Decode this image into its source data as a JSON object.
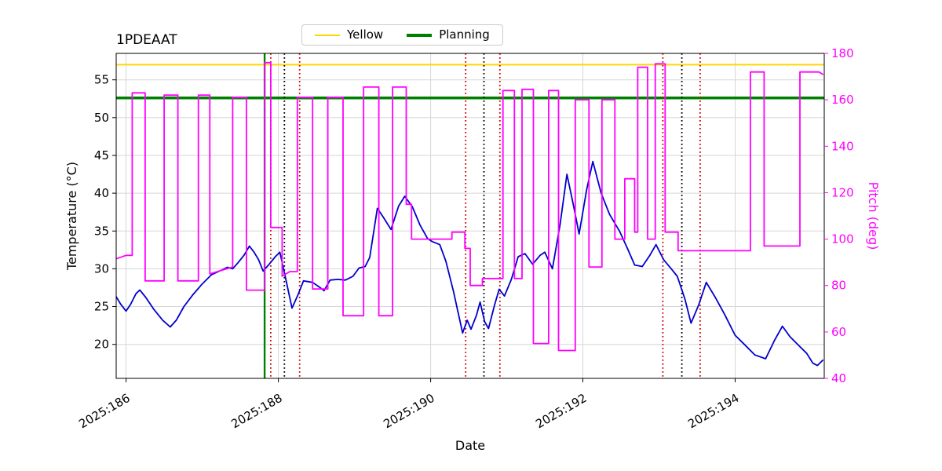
{
  "chart_data": {
    "type": "line",
    "title": "1PDEAAT",
    "xlabel": "Date",
    "ylabel_left": "Temperature (°C)",
    "ylabel_right": "Pitch (deg)",
    "grid": true,
    "legend_position": "top-center",
    "right_axis_color": "#ff00ff",
    "xlim": [
      185.87,
      195.17
    ],
    "ylim_left": [
      15.5,
      58.5
    ],
    "ylim_right": [
      40,
      180
    ],
    "x_ticks": [
      186,
      188,
      190,
      192,
      194
    ],
    "x_tick_labels": [
      "2025:186",
      "2025:188",
      "2025:190",
      "2025:192",
      "2025:194"
    ],
    "y_ticks_left": [
      20,
      25,
      30,
      35,
      40,
      45,
      50,
      55
    ],
    "y_ticks_right": [
      40,
      60,
      80,
      100,
      120,
      140,
      160,
      180
    ],
    "legend": [
      {
        "label": "Yellow",
        "color": "#ffd700",
        "width": 2
      },
      {
        "label": "Planning",
        "color": "#008000",
        "width": 4
      }
    ],
    "hlines": [
      {
        "name": "yellow-limit",
        "y": 57.0,
        "color": "#ffd700",
        "width": 2
      },
      {
        "name": "planning-limit",
        "y": 52.6,
        "color": "#008000",
        "width": 3.5
      }
    ],
    "vlines": [
      {
        "x": 187.82,
        "color": "#008000",
        "style": "solid",
        "width": 2.4
      },
      {
        "x": 187.9,
        "color": "#cc0000",
        "style": "dotted",
        "width": 1.8
      },
      {
        "x": 188.08,
        "color": "#000000",
        "style": "dotted",
        "width": 1.8
      },
      {
        "x": 188.28,
        "color": "#cc0000",
        "style": "dotted",
        "width": 1.8
      },
      {
        "x": 190.46,
        "color": "#cc0000",
        "style": "dotted",
        "width": 1.8
      },
      {
        "x": 190.7,
        "color": "#000000",
        "style": "dotted",
        "width": 1.8
      },
      {
        "x": 190.91,
        "color": "#cc0000",
        "style": "dotted",
        "width": 1.8
      },
      {
        "x": 193.05,
        "color": "#cc0000",
        "style": "dotted",
        "width": 1.8
      },
      {
        "x": 193.3,
        "color": "#000000",
        "style": "dotted",
        "width": 1.8
      },
      {
        "x": 193.54,
        "color": "#cc0000",
        "style": "dotted",
        "width": 1.8
      }
    ],
    "series": [
      {
        "name": "Temperature",
        "axis": "left",
        "color": "#0000cd",
        "width": 1.8,
        "points": [
          [
            185.87,
            26.3
          ],
          [
            185.93,
            25.3
          ],
          [
            186.0,
            24.4
          ],
          [
            186.06,
            25.3
          ],
          [
            186.13,
            26.7
          ],
          [
            186.18,
            27.2
          ],
          [
            186.26,
            26.2
          ],
          [
            186.36,
            24.7
          ],
          [
            186.48,
            23.2
          ],
          [
            186.58,
            22.3
          ],
          [
            186.66,
            23.2
          ],
          [
            186.76,
            25.0
          ],
          [
            186.88,
            26.6
          ],
          [
            187.0,
            28.0
          ],
          [
            187.12,
            29.2
          ],
          [
            187.25,
            29.8
          ],
          [
            187.33,
            30.2
          ],
          [
            187.4,
            30.0
          ],
          [
            187.47,
            30.8
          ],
          [
            187.55,
            31.8
          ],
          [
            187.62,
            33.0
          ],
          [
            187.68,
            32.2
          ],
          [
            187.74,
            31.2
          ],
          [
            187.8,
            29.7
          ],
          [
            187.88,
            30.6
          ],
          [
            187.96,
            31.6
          ],
          [
            188.02,
            32.2
          ],
          [
            188.09,
            29.0
          ],
          [
            188.18,
            24.8
          ],
          [
            188.26,
            26.6
          ],
          [
            188.33,
            28.4
          ],
          [
            188.45,
            28.2
          ],
          [
            188.55,
            27.5
          ],
          [
            188.6,
            27.1
          ],
          [
            188.68,
            28.5
          ],
          [
            188.78,
            28.6
          ],
          [
            188.88,
            28.5
          ],
          [
            188.98,
            29.0
          ],
          [
            189.06,
            30.1
          ],
          [
            189.14,
            30.3
          ],
          [
            189.2,
            31.5
          ],
          [
            189.3,
            38.0
          ],
          [
            189.38,
            36.8
          ],
          [
            189.48,
            35.2
          ],
          [
            189.58,
            38.3
          ],
          [
            189.66,
            39.6
          ],
          [
            189.76,
            38.2
          ],
          [
            189.86,
            35.8
          ],
          [
            189.96,
            34.0
          ],
          [
            190.02,
            33.6
          ],
          [
            190.12,
            33.2
          ],
          [
            190.2,
            31.0
          ],
          [
            190.3,
            27.0
          ],
          [
            190.42,
            21.5
          ],
          [
            190.48,
            23.2
          ],
          [
            190.53,
            22.0
          ],
          [
            190.6,
            23.8
          ],
          [
            190.65,
            25.6
          ],
          [
            190.71,
            23.0
          ],
          [
            190.76,
            22.1
          ],
          [
            190.84,
            25.2
          ],
          [
            190.9,
            27.3
          ],
          [
            190.97,
            26.4
          ],
          [
            191.06,
            28.6
          ],
          [
            191.15,
            31.6
          ],
          [
            191.24,
            32.0
          ],
          [
            191.34,
            30.6
          ],
          [
            191.44,
            31.8
          ],
          [
            191.5,
            32.2
          ],
          [
            191.6,
            30.0
          ],
          [
            191.7,
            35.8
          ],
          [
            191.79,
            42.5
          ],
          [
            191.88,
            38.2
          ],
          [
            191.95,
            34.6
          ],
          [
            192.05,
            40.5
          ],
          [
            192.13,
            44.2
          ],
          [
            192.24,
            40.0
          ],
          [
            192.35,
            37.2
          ],
          [
            192.48,
            35.0
          ],
          [
            192.58,
            32.8
          ],
          [
            192.68,
            30.5
          ],
          [
            192.78,
            30.3
          ],
          [
            192.88,
            31.8
          ],
          [
            192.96,
            33.2
          ],
          [
            193.06,
            31.2
          ],
          [
            193.16,
            30.0
          ],
          [
            193.24,
            29.0
          ],
          [
            193.34,
            26.0
          ],
          [
            193.42,
            22.8
          ],
          [
            193.52,
            25.2
          ],
          [
            193.62,
            28.2
          ],
          [
            193.74,
            26.2
          ],
          [
            193.86,
            24.0
          ],
          [
            194.0,
            21.2
          ],
          [
            194.12,
            20.0
          ],
          [
            194.26,
            18.6
          ],
          [
            194.4,
            18.1
          ],
          [
            194.52,
            20.6
          ],
          [
            194.62,
            22.4
          ],
          [
            194.72,
            21.0
          ],
          [
            194.84,
            19.8
          ],
          [
            194.94,
            18.8
          ],
          [
            195.02,
            17.5
          ],
          [
            195.08,
            17.2
          ],
          [
            195.15,
            17.9
          ]
        ]
      },
      {
        "name": "Pitch",
        "axis": "right",
        "color": "#ff00ff",
        "width": 1.8,
        "points": [
          [
            185.87,
            91.5
          ],
          [
            186.0,
            93
          ],
          [
            186.08,
            93
          ],
          [
            186.08,
            163
          ],
          [
            186.25,
            163
          ],
          [
            186.25,
            82
          ],
          [
            186.5,
            82
          ],
          [
            186.5,
            162
          ],
          [
            186.68,
            162
          ],
          [
            186.68,
            82
          ],
          [
            186.95,
            82
          ],
          [
            186.95,
            162
          ],
          [
            187.1,
            162
          ],
          [
            187.1,
            85
          ],
          [
            187.4,
            88
          ],
          [
            187.4,
            161
          ],
          [
            187.58,
            161
          ],
          [
            187.58,
            78
          ],
          [
            187.82,
            78
          ],
          [
            187.82,
            176
          ],
          [
            187.9,
            176
          ],
          [
            187.9,
            105
          ],
          [
            188.05,
            105
          ],
          [
            188.05,
            84
          ],
          [
            188.15,
            86
          ],
          [
            188.25,
            86
          ],
          [
            188.25,
            161
          ],
          [
            188.45,
            161
          ],
          [
            188.45,
            78.5
          ],
          [
            188.65,
            78.5
          ],
          [
            188.65,
            161
          ],
          [
            188.85,
            161
          ],
          [
            188.85,
            67
          ],
          [
            189.12,
            67
          ],
          [
            189.12,
            165.5
          ],
          [
            189.32,
            165.5
          ],
          [
            189.32,
            67
          ],
          [
            189.5,
            67
          ],
          [
            189.5,
            165.5
          ],
          [
            189.68,
            165.5
          ],
          [
            189.68,
            115
          ],
          [
            189.75,
            115
          ],
          [
            189.75,
            100
          ],
          [
            190.28,
            100
          ],
          [
            190.28,
            103
          ],
          [
            190.45,
            103
          ],
          [
            190.45,
            96
          ],
          [
            190.52,
            96
          ],
          [
            190.52,
            80
          ],
          [
            190.68,
            80
          ],
          [
            190.68,
            83
          ],
          [
            190.95,
            83
          ],
          [
            190.95,
            164
          ],
          [
            191.1,
            164
          ],
          [
            191.1,
            83
          ],
          [
            191.2,
            83
          ],
          [
            191.2,
            164.5
          ],
          [
            191.35,
            164.5
          ],
          [
            191.35,
            55
          ],
          [
            191.55,
            55
          ],
          [
            191.55,
            164
          ],
          [
            191.68,
            164
          ],
          [
            191.68,
            52
          ],
          [
            191.9,
            52
          ],
          [
            191.9,
            160
          ],
          [
            192.08,
            160
          ],
          [
            192.08,
            88
          ],
          [
            192.25,
            88
          ],
          [
            192.25,
            160
          ],
          [
            192.42,
            160
          ],
          [
            192.42,
            100
          ],
          [
            192.55,
            100
          ],
          [
            192.55,
            126
          ],
          [
            192.68,
            126
          ],
          [
            192.68,
            103
          ],
          [
            192.72,
            103
          ],
          [
            192.72,
            174
          ],
          [
            192.85,
            174
          ],
          [
            192.85,
            100
          ],
          [
            192.95,
            100
          ],
          [
            192.95,
            175.5
          ],
          [
            193.08,
            175.5
          ],
          [
            193.08,
            103
          ],
          [
            193.25,
            103
          ],
          [
            193.25,
            95
          ],
          [
            194.2,
            95
          ],
          [
            194.2,
            172
          ],
          [
            194.38,
            172
          ],
          [
            194.38,
            97
          ],
          [
            194.85,
            97
          ],
          [
            194.85,
            172
          ],
          [
            195.1,
            172
          ],
          [
            195.15,
            171
          ]
        ]
      }
    ]
  }
}
